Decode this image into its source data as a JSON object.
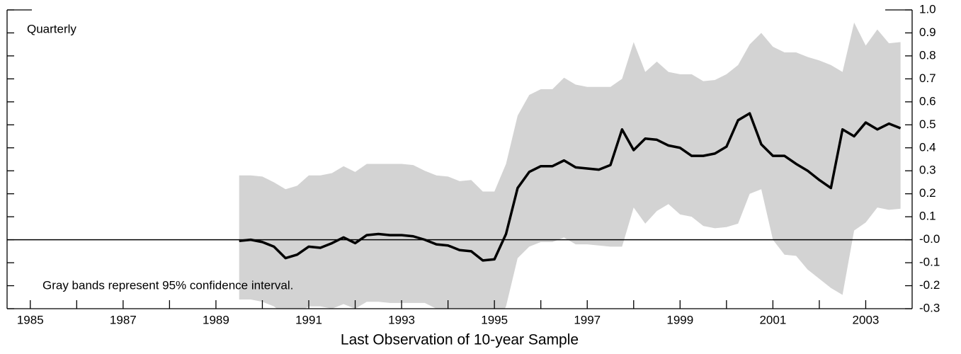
{
  "chart_data": {
    "type": "line-band",
    "annotations": [
      "Quarterly",
      "Gray bands represent 95% confidence interval."
    ],
    "xlabel": "Last Observation of 10-year Sample",
    "x": [
      1989.5,
      1989.75,
      1990,
      1990.25,
      1990.5,
      1990.75,
      1991,
      1991.25,
      1991.5,
      1991.75,
      1992,
      1992.25,
      1992.5,
      1992.75,
      1993,
      1993.25,
      1993.5,
      1993.75,
      1994,
      1994.25,
      1994.5,
      1994.75,
      1995,
      1995.25,
      1995.5,
      1995.75,
      1996,
      1996.25,
      1996.5,
      1996.75,
      1997,
      1997.25,
      1997.5,
      1997.75,
      1998,
      1998.25,
      1998.5,
      1998.75,
      1999,
      1999.25,
      1999.5,
      1999.75,
      2000,
      2000.25,
      2000.5,
      2000.75,
      2001,
      2001.25,
      2001.5,
      2001.75,
      2002,
      2002.25,
      2002.5,
      2002.75,
      2003,
      2003.25,
      2003.5,
      2003.75
    ],
    "values": [
      -0.005,
      0.0,
      -0.01,
      -0.03,
      -0.08,
      -0.065,
      -0.03,
      -0.035,
      -0.015,
      0.01,
      -0.015,
      0.02,
      0.025,
      0.02,
      0.02,
      0.015,
      0.0,
      -0.02,
      -0.025,
      -0.045,
      -0.05,
      -0.09,
      -0.085,
      0.025,
      0.225,
      0.295,
      0.32,
      0.32,
      0.345,
      0.315,
      0.31,
      0.305,
      0.325,
      0.48,
      0.39,
      0.44,
      0.435,
      0.41,
      0.4,
      0.365,
      0.365,
      0.375,
      0.405,
      0.52,
      0.55,
      0.415,
      0.365,
      0.365,
      0.33,
      0.3,
      0.26,
      0.225,
      0.48,
      0.45,
      0.51,
      0.48,
      0.505,
      0.485
    ],
    "upper": [
      0.28,
      0.28,
      0.275,
      0.25,
      0.22,
      0.235,
      0.28,
      0.28,
      0.29,
      0.32,
      0.295,
      0.33,
      0.33,
      0.33,
      0.33,
      0.325,
      0.3,
      0.28,
      0.275,
      0.255,
      0.26,
      0.21,
      0.21,
      0.33,
      0.54,
      0.63,
      0.655,
      0.655,
      0.705,
      0.675,
      0.665,
      0.665,
      0.665,
      0.7,
      0.86,
      0.73,
      0.775,
      0.73,
      0.72,
      0.72,
      0.69,
      0.695,
      0.72,
      0.76,
      0.85,
      0.9,
      0.84,
      0.815,
      0.815,
      0.795,
      0.78,
      0.76,
      0.73,
      0.945,
      0.845,
      0.915,
      0.855,
      0.86
    ],
    "lower": [
      -0.26,
      -0.26,
      -0.27,
      -0.29,
      -0.33,
      -0.32,
      -0.29,
      -0.29,
      -0.3,
      -0.28,
      -0.3,
      -0.27,
      -0.27,
      -0.275,
      -0.275,
      -0.275,
      -0.275,
      -0.3,
      -0.31,
      -0.33,
      -0.34,
      -0.4,
      -0.38,
      -0.29,
      -0.08,
      -0.03,
      -0.01,
      -0.01,
      0.01,
      -0.02,
      -0.02,
      -0.025,
      -0.03,
      -0.03,
      0.14,
      0.07,
      0.125,
      0.155,
      0.11,
      0.1,
      0.06,
      0.05,
      0.055,
      0.07,
      0.2,
      0.22,
      0.0,
      -0.065,
      -0.07,
      -0.13,
      -0.17,
      -0.21,
      -0.24,
      0.04,
      0.075,
      0.14,
      0.13,
      0.135
    ],
    "color": "#000000",
    "band_color": "#d3d3d3",
    "hline": 0,
    "xlim": [
      1984.5,
      2004.0
    ],
    "xticks": [
      1985,
      1987,
      1989,
      1991,
      1993,
      1995,
      1997,
      1999,
      2001,
      2003
    ],
    "xminorticks": [
      1986,
      1988,
      1990,
      1992,
      1994,
      1996,
      1998,
      2000,
      2002
    ],
    "ylim": [
      -0.3,
      1.0
    ],
    "yticks": [
      {
        "value": 1,
        "label": "1.0"
      },
      0.9,
      0.8,
      0.7,
      0.6,
      0.5,
      0.4,
      0.3,
      0.2,
      0.1,
      {
        "value": 0,
        "label": "-0.0"
      },
      -0.1,
      -0.2,
      -0.3
    ],
    "y_axis_side": "right"
  }
}
